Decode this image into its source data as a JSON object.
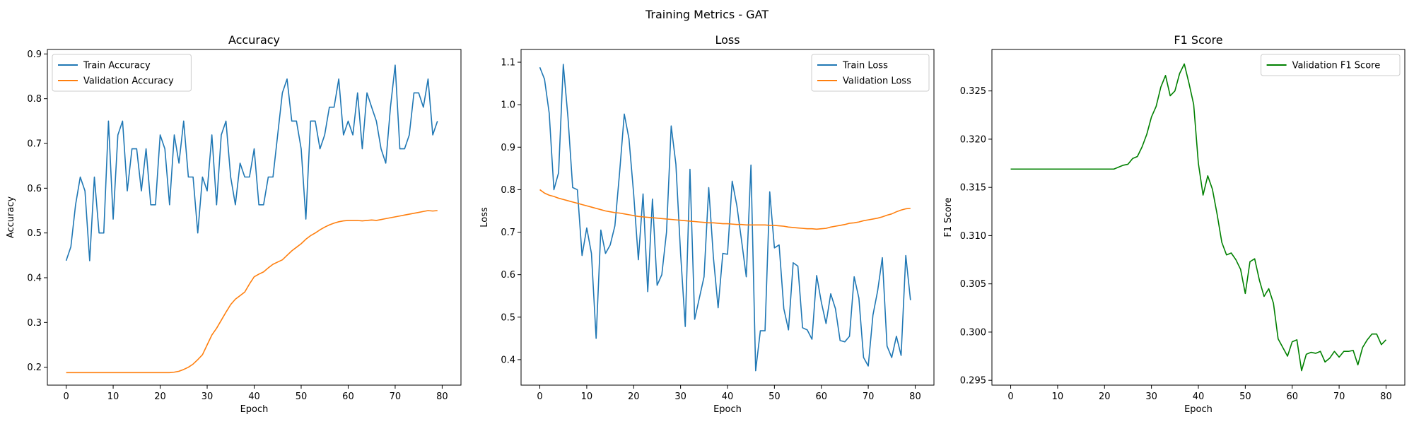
{
  "figure": {
    "suptitle": "Training Metrics - GAT"
  },
  "chart_data": [
    {
      "type": "line",
      "title": "Accuracy",
      "xlabel": "Epoch",
      "ylabel": "Accuracy",
      "xlim": [
        -4,
        84
      ],
      "ylim": [
        0.16,
        0.91
      ],
      "xticks": [
        0,
        10,
        20,
        30,
        40,
        50,
        60,
        70,
        80
      ],
      "yticks": [
        0.2,
        0.3,
        0.4,
        0.5,
        0.6,
        0.7,
        0.8,
        0.9
      ],
      "ytick_labels": [
        "0.2",
        "0.3",
        "0.4",
        "0.5",
        "0.6",
        "0.7",
        "0.8",
        "0.9"
      ],
      "legend_position": "top-left",
      "grid": false,
      "series": [
        {
          "name": "Train Accuracy",
          "color": "#1f77b4",
          "values": [
            0.438,
            0.469,
            0.563,
            0.625,
            0.594,
            0.438,
            0.625,
            0.5,
            0.5,
            0.75,
            0.531,
            0.719,
            0.75,
            0.594,
            0.688,
            0.688,
            0.594,
            0.688,
            0.563,
            0.563,
            0.719,
            0.688,
            0.563,
            0.719,
            0.656,
            0.75,
            0.625,
            0.625,
            0.5,
            0.625,
            0.594,
            0.719,
            0.563,
            0.719,
            0.75,
            0.625,
            0.563,
            0.656,
            0.625,
            0.625,
            0.688,
            0.563,
            0.563,
            0.625,
            0.625,
            0.719,
            0.813,
            0.844,
            0.75,
            0.75,
            0.688,
            0.531,
            0.75,
            0.75,
            0.688,
            0.719,
            0.781,
            0.781,
            0.844,
            0.719,
            0.75,
            0.719,
            0.813,
            0.688,
            0.813,
            0.781,
            0.75,
            0.688,
            0.656,
            0.781,
            0.875,
            0.688,
            0.688,
            0.719,
            0.813,
            0.813,
            0.781,
            0.844,
            0.719,
            0.75
          ]
        },
        {
          "name": "Validation Accuracy",
          "color": "#ff7f0e",
          "values": [
            0.188,
            0.188,
            0.188,
            0.188,
            0.188,
            0.188,
            0.188,
            0.188,
            0.188,
            0.188,
            0.188,
            0.188,
            0.188,
            0.188,
            0.188,
            0.188,
            0.188,
            0.188,
            0.188,
            0.188,
            0.188,
            0.188,
            0.188,
            0.189,
            0.191,
            0.195,
            0.2,
            0.207,
            0.217,
            0.228,
            0.25,
            0.272,
            0.287,
            0.305,
            0.323,
            0.34,
            0.352,
            0.36,
            0.368,
            0.386,
            0.402,
            0.408,
            0.413,
            0.422,
            0.43,
            0.435,
            0.44,
            0.45,
            0.46,
            0.468,
            0.476,
            0.486,
            0.494,
            0.5,
            0.507,
            0.513,
            0.518,
            0.522,
            0.525,
            0.527,
            0.528,
            0.528,
            0.528,
            0.527,
            0.528,
            0.529,
            0.528,
            0.53,
            0.532,
            0.534,
            0.536,
            0.538,
            0.54,
            0.542,
            0.544,
            0.546,
            0.548,
            0.55,
            0.549,
            0.55
          ]
        }
      ]
    },
    {
      "type": "line",
      "title": "Loss",
      "xlabel": "Epoch",
      "ylabel": "Loss",
      "xlim": [
        -4,
        84
      ],
      "ylim": [
        0.34,
        1.13
      ],
      "xticks": [
        0,
        10,
        20,
        30,
        40,
        50,
        60,
        70,
        80
      ],
      "yticks": [
        0.4,
        0.5,
        0.6,
        0.7,
        0.8,
        0.9,
        1.0,
        1.1
      ],
      "ytick_labels": [
        "0.4",
        "0.5",
        "0.6",
        "0.7",
        "0.8",
        "0.9",
        "1.0",
        "1.1"
      ],
      "legend_position": "top-right",
      "grid": false,
      "series": [
        {
          "name": "Train Loss",
          "color": "#1f77b4",
          "values": [
            1.088,
            1.06,
            0.98,
            0.8,
            0.84,
            1.095,
            0.97,
            0.805,
            0.8,
            0.645,
            0.71,
            0.65,
            0.45,
            0.705,
            0.65,
            0.67,
            0.715,
            0.84,
            0.978,
            0.92,
            0.79,
            0.635,
            0.79,
            0.56,
            0.778,
            0.575,
            0.6,
            0.7,
            0.95,
            0.86,
            0.65,
            0.478,
            0.848,
            0.495,
            0.545,
            0.595,
            0.805,
            0.64,
            0.522,
            0.65,
            0.648,
            0.82,
            0.762,
            0.68,
            0.595,
            0.858,
            0.374,
            0.468,
            0.468,
            0.795,
            0.663,
            0.67,
            0.52,
            0.47,
            0.628,
            0.62,
            0.475,
            0.47,
            0.448,
            0.598,
            0.535,
            0.485,
            0.555,
            0.52,
            0.445,
            0.442,
            0.455,
            0.595,
            0.545,
            0.405,
            0.385,
            0.505,
            0.562,
            0.64,
            0.432,
            0.405,
            0.455,
            0.41,
            0.645,
            0.54
          ]
        },
        {
          "name": "Validation Loss",
          "color": "#ff7f0e",
          "values": [
            0.8,
            0.792,
            0.787,
            0.784,
            0.78,
            0.777,
            0.774,
            0.771,
            0.768,
            0.765,
            0.762,
            0.759,
            0.756,
            0.753,
            0.75,
            0.748,
            0.746,
            0.745,
            0.743,
            0.741,
            0.739,
            0.737,
            0.736,
            0.735,
            0.734,
            0.733,
            0.732,
            0.731,
            0.73,
            0.729,
            0.728,
            0.727,
            0.726,
            0.725,
            0.724,
            0.723,
            0.722,
            0.722,
            0.721,
            0.72,
            0.72,
            0.719,
            0.718,
            0.718,
            0.717,
            0.717,
            0.717,
            0.717,
            0.717,
            0.716,
            0.716,
            0.715,
            0.714,
            0.712,
            0.711,
            0.71,
            0.709,
            0.708,
            0.708,
            0.707,
            0.708,
            0.709,
            0.712,
            0.714,
            0.716,
            0.718,
            0.721,
            0.722,
            0.724,
            0.727,
            0.729,
            0.731,
            0.733,
            0.736,
            0.74,
            0.743,
            0.748,
            0.752,
            0.755,
            0.756
          ]
        }
      ]
    },
    {
      "type": "line",
      "title": "F1 Score",
      "xlabel": "Epoch",
      "ylabel": "F1 Score",
      "xlim": [
        -4,
        84
      ],
      "ylim": [
        0.2945,
        0.3293
      ],
      "xticks": [
        0,
        10,
        20,
        30,
        40,
        50,
        60,
        70,
        80
      ],
      "yticks": [
        0.295,
        0.3,
        0.305,
        0.31,
        0.315,
        0.32,
        0.325
      ],
      "ytick_labels": [
        "0.295",
        "0.300",
        "0.305",
        "0.310",
        "0.315",
        "0.320",
        "0.325"
      ],
      "legend_position": "top-right",
      "grid": false,
      "series": [
        {
          "name": "Validation F1 Score",
          "color": "#008000",
          "values": [
            0.3169,
            0.3169,
            0.3169,
            0.3169,
            0.3169,
            0.3169,
            0.3169,
            0.3169,
            0.3169,
            0.3169,
            0.3169,
            0.3169,
            0.3169,
            0.3169,
            0.3169,
            0.3169,
            0.3169,
            0.3169,
            0.3169,
            0.3169,
            0.3169,
            0.3169,
            0.3169,
            0.3171,
            0.3173,
            0.3174,
            0.318,
            0.3182,
            0.3192,
            0.3205,
            0.3223,
            0.3234,
            0.3254,
            0.3266,
            0.3245,
            0.325,
            0.3268,
            0.3278,
            0.3258,
            0.3236,
            0.3175,
            0.3142,
            0.3162,
            0.3148,
            0.3122,
            0.3093,
            0.308,
            0.3082,
            0.3075,
            0.3065,
            0.304,
            0.3073,
            0.3076,
            0.3054,
            0.3037,
            0.3045,
            0.303,
            0.2993,
            0.2984,
            0.2975,
            0.299,
            0.2992,
            0.296,
            0.2977,
            0.2979,
            0.2978,
            0.298,
            0.2969,
            0.2973,
            0.298,
            0.2974,
            0.298,
            0.298,
            0.2981,
            0.2966,
            0.2984,
            0.2992,
            0.2998,
            0.2998,
            0.2987,
            0.2992
          ]
        }
      ]
    }
  ]
}
